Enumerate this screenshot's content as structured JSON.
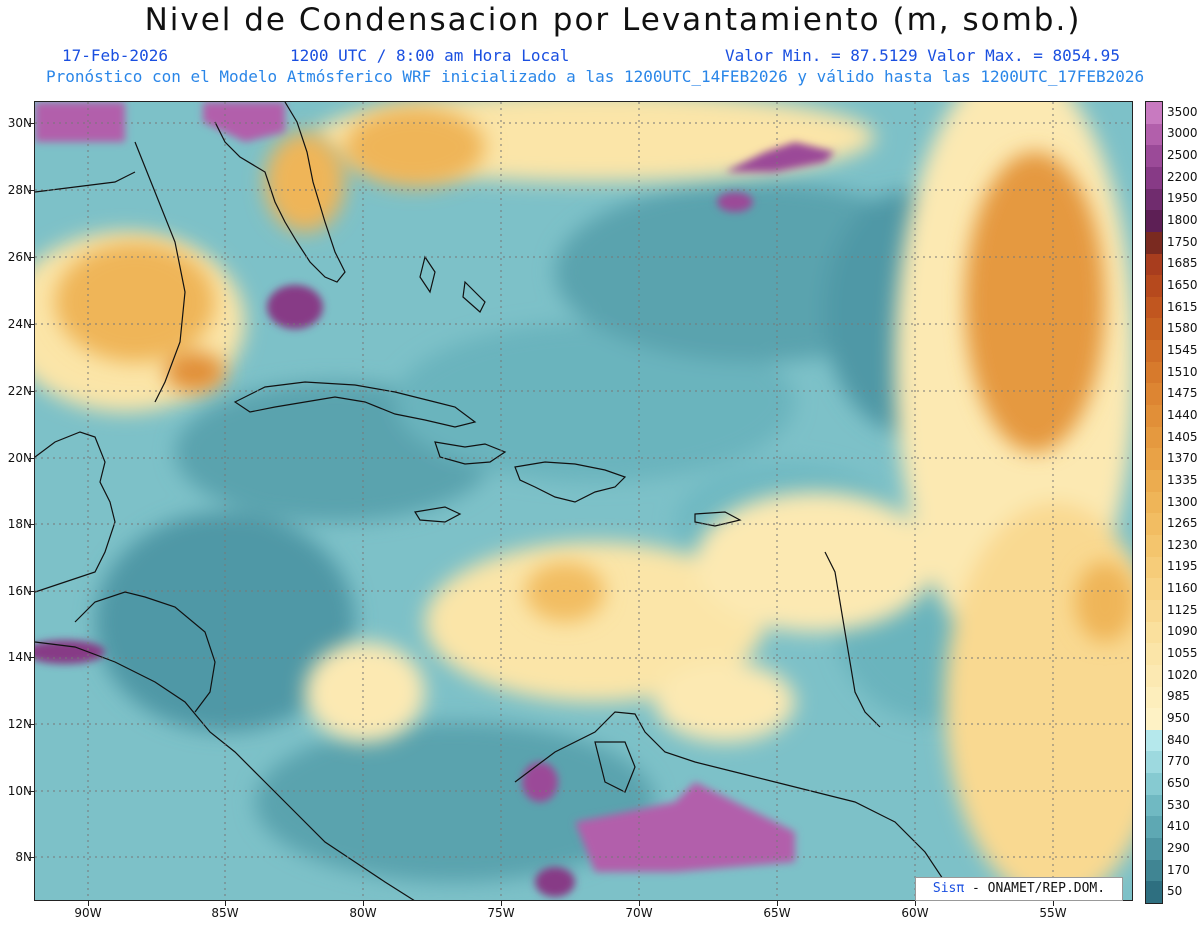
{
  "title": "Nivel de Condensacion por Levantamiento (m, somb.)",
  "date": "17-Feb-2026",
  "time": "1200 UTC / 8:00 am Hora Local",
  "range": "Valor Min. = 87.5129   Valor Max. = 8054.95",
  "model_line": "Pronóstico con el Modelo Atmósferico WRF inicializado a las 1200UTC_14FEB2026 y válido hasta las  1200UTC_17FEB2026",
  "lat_labels": [
    "30N",
    "28N",
    "26N",
    "24N",
    "22N",
    "20N",
    "18N",
    "16N",
    "14N",
    "12N",
    "10N",
    "8N"
  ],
  "lon_labels": [
    "90W",
    "85W",
    "80W",
    "75W",
    "70W",
    "65W",
    "60W",
    "55W"
  ],
  "colorbar": {
    "labels": [
      "3500",
      "3000",
      "2500",
      "2200",
      "1950",
      "1800",
      "1750",
      "1685",
      "1650",
      "1615",
      "1580",
      "1545",
      "1510",
      "1475",
      "1440",
      "1405",
      "1370",
      "1335",
      "1300",
      "1265",
      "1230",
      "1195",
      "1160",
      "1125",
      "1090",
      "1055",
      "1020",
      "985",
      "950",
      "840",
      "770",
      "650",
      "530",
      "410",
      "290",
      "170",
      "50"
    ],
    "colors": [
      "#c87ac0",
      "#b25fab",
      "#9b4a98",
      "#873a86",
      "#702c6e",
      "#5d1f55",
      "#7a2a20",
      "#a83d1e",
      "#b6491d",
      "#c1561f",
      "#c86322",
      "#d06e27",
      "#d77a2c",
      "#dd8532",
      "#e18f38",
      "#e5993f",
      "#e9a246",
      "#ecac4f",
      "#efb558",
      "#f2bd62",
      "#f4c56d",
      "#f6cc79",
      "#f8d385",
      "#f9d991",
      "#fae09d",
      "#fbe5a8",
      "#fce9b2",
      "#fdeebc",
      "#fef2c5",
      "#b5e8ec",
      "#9dd9df",
      "#86cad1",
      "#70b9c2",
      "#5ea8b3",
      "#4e96a3",
      "#408593",
      "#2e6f80"
    ]
  },
  "credit": {
    "brand": "Sisπ",
    "text": " - ONAMET/REP.DOM."
  }
}
